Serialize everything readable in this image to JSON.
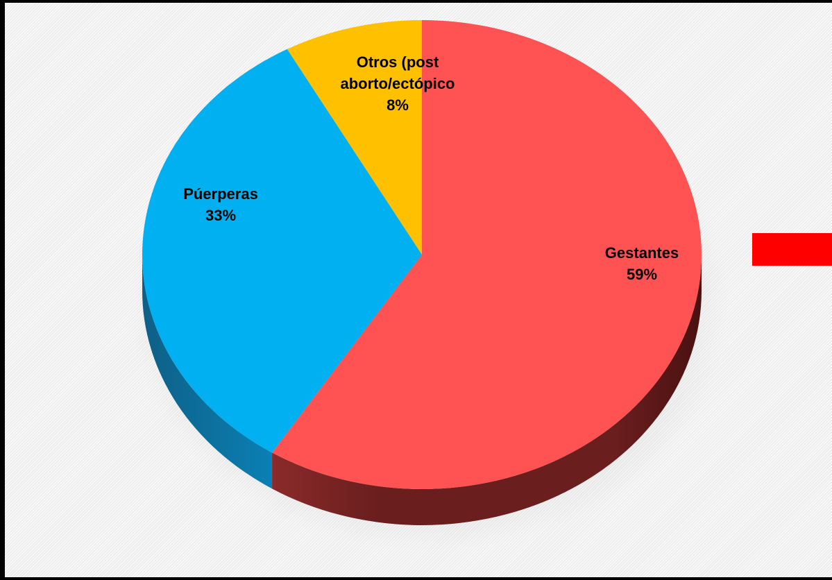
{
  "chart_data": {
    "type": "pie",
    "style": "3d",
    "slices": [
      {
        "label": "Gestantes",
        "value": 59,
        "value_label": "59%",
        "color": "#FF5252",
        "side_color": "#6E1E1E"
      },
      {
        "label": "Púerperas",
        "value": 33,
        "value_label": "33%",
        "color": "#00B0F0",
        "side_color": "#0A6E96"
      },
      {
        "label": "Otros (post aborto/ectópico",
        "label_lines": [
          "Otros (post",
          "aborto/ectópico"
        ],
        "value": 8,
        "value_label": "8%",
        "color": "#FFC000",
        "side_color": "#A07800"
      }
    ],
    "legend": {
      "placement": "right",
      "swatch_color": "#FF0000"
    }
  }
}
